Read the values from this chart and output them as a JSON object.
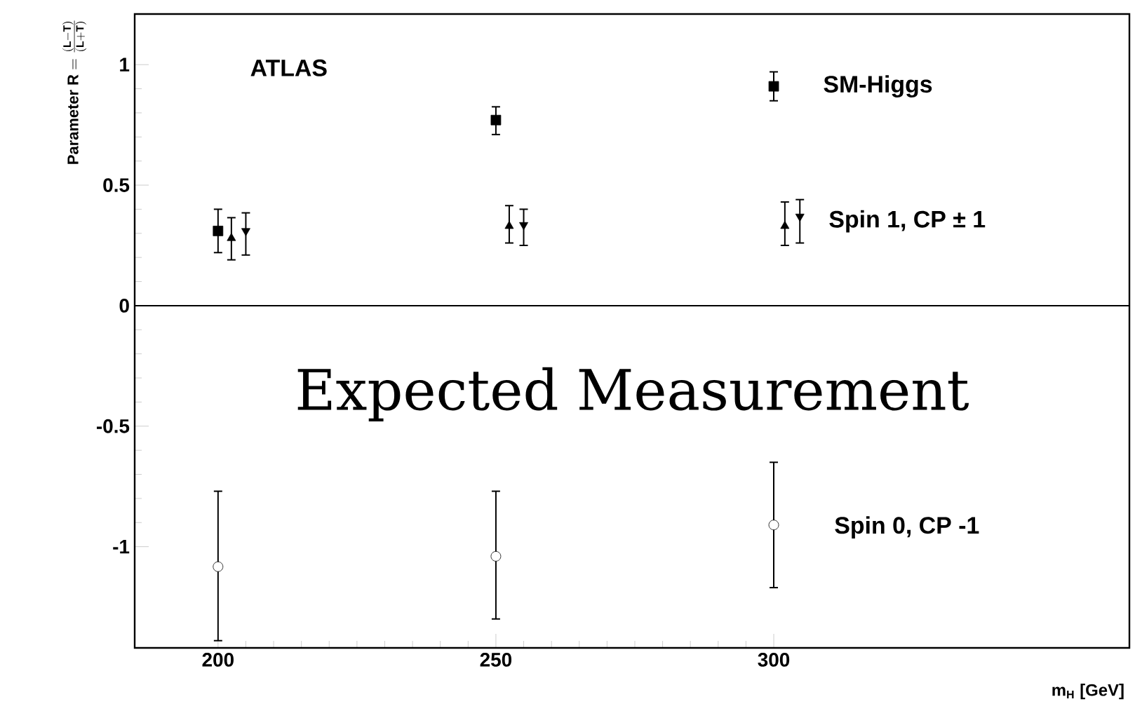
{
  "chart_data": {
    "type": "scatter",
    "xlabel": "m$_{H}$ [GeV]",
    "ylabel": "\\mathbf{Parameter\\ R} = \\frac{\\mathbf{(L-T)}}{\\mathbf{(L+T)}}",
    "xlim": [
      185,
      364
    ],
    "ylim": [
      -1.42,
      1.21
    ],
    "xticks": [
      200,
      250,
      300
    ],
    "yticks": [
      -1,
      -0.5,
      0,
      0.5,
      1
    ],
    "ref_lines": [
      {
        "axis": "y",
        "value": 0,
        "color": "#000000"
      }
    ],
    "annotations": [
      "ATLAS",
      "Expected Measurement",
      "SM-Higgs",
      "Spin 1, CP ± 1",
      "Spin 0, CP -1"
    ],
    "series": [
      {
        "color": "#000000",
        "marker": "square",
        "x": [
          200,
          250,
          300
        ],
        "values": [
          0.31,
          0.77,
          0.91
        ],
        "errors": [
          [
            0.22,
            0.4
          ],
          [
            0.71,
            0.825
          ],
          [
            0.85,
            0.97
          ]
        ]
      },
      {
        "color": "#000000",
        "marker": "triangle",
        "x": [
          202.4,
          252.4,
          302
        ],
        "values": [
          0.28,
          0.33,
          0.33
        ],
        "errors": [
          [
            0.19,
            0.365
          ],
          [
            0.26,
            0.415
          ],
          [
            0.25,
            0.43
          ]
        ]
      },
      {
        "color": "#000000",
        "marker": "triangle-down",
        "x": [
          205,
          255,
          304.7
        ],
        "values": [
          0.31,
          0.335,
          0.37
        ],
        "errors": [
          [
            0.21,
            0.385
          ],
          [
            0.25,
            0.4
          ],
          [
            0.26,
            0.44
          ]
        ]
      },
      {
        "color": "#ffffff",
        "marker": "circle",
        "x": [
          200,
          250,
          300
        ],
        "values": [
          -1.083,
          -1.04,
          -0.91
        ],
        "errors": [
          [
            -1.39,
            -0.77
          ],
          [
            -1.3,
            -0.77
          ],
          [
            -1.17,
            -0.65
          ]
        ]
      }
    ]
  }
}
